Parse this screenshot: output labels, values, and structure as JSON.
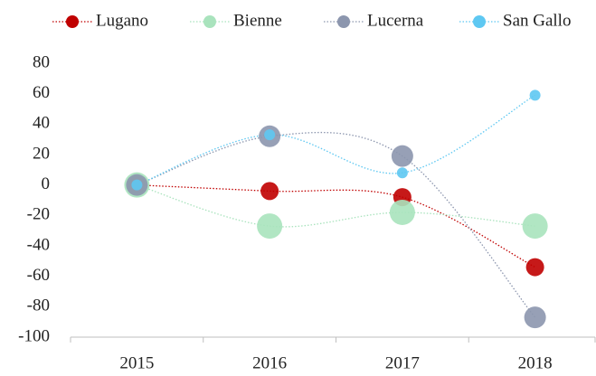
{
  "chart_data": {
    "type": "line",
    "categories": [
      "2015",
      "2016",
      "2017",
      "2018"
    ],
    "series": [
      {
        "name": "Lugano",
        "color": "#c00000",
        "values": [
          0,
          -4,
          -8,
          -54
        ]
      },
      {
        "name": "Bienne",
        "color": "#a9e3bd",
        "values": [
          0,
          -27,
          -18,
          -27
        ]
      },
      {
        "name": "Lucerna",
        "color": "#8c96ae",
        "values": [
          0,
          32,
          19,
          -87
        ]
      },
      {
        "name": "San Gallo",
        "color": "#5ec8f2",
        "values": [
          0,
          33,
          8,
          59
        ]
      }
    ],
    "ylim": [
      -100,
      80
    ],
    "yticks": [
      -100,
      -80,
      -60,
      -40,
      -20,
      0,
      20,
      40,
      60,
      80
    ],
    "grid": false,
    "smooth": true,
    "legend": "top"
  }
}
